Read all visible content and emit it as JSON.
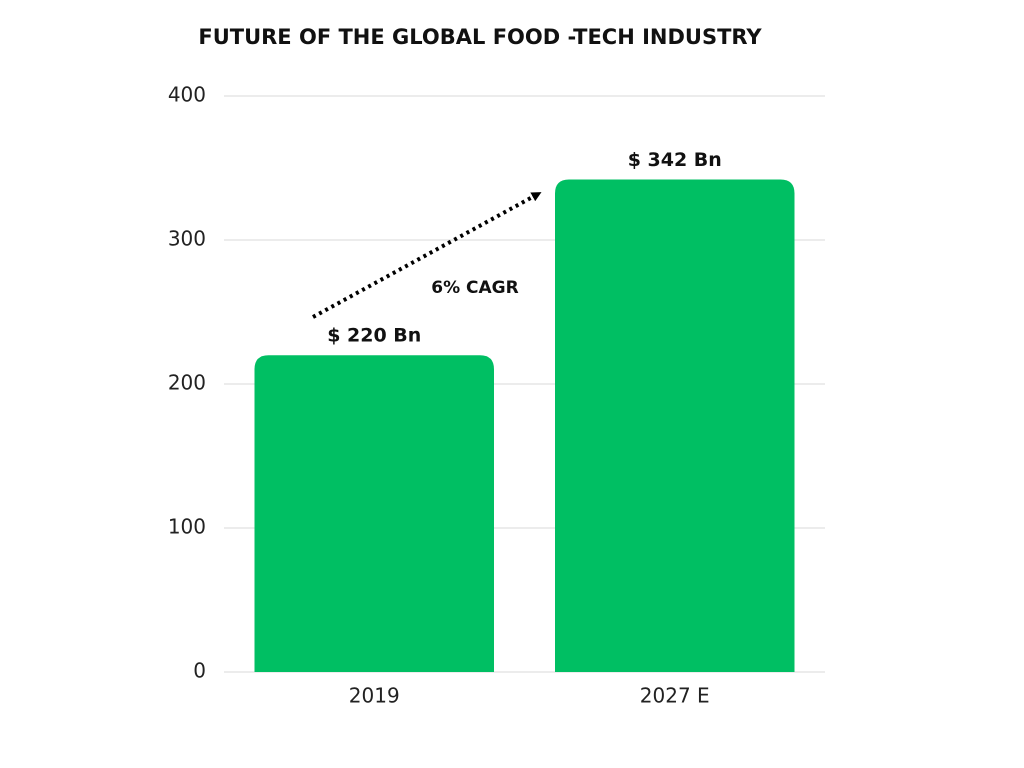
{
  "chart_data": {
    "type": "bar",
    "title": "FUTURE OF THE GLOBAL FOOD -TECH INDUSTRY",
    "categories": [
      "2019",
      "2027 E"
    ],
    "values": [
      220,
      342
    ],
    "value_labels": [
      "$ 220 Bn",
      "$ 342 Bn"
    ],
    "color": "#00bf63",
    "annotation": "6% CAGR",
    "ylim": [
      0,
      400
    ],
    "yticks": [
      0,
      100,
      200,
      300,
      400
    ],
    "grid": true
  }
}
